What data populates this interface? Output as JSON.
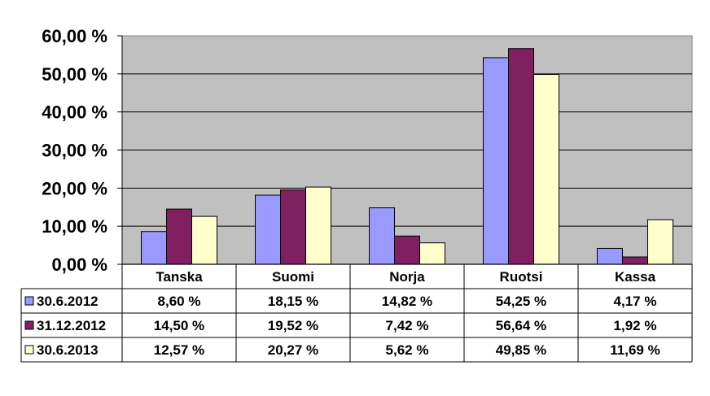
{
  "chart_data": {
    "type": "bar",
    "categories": [
      "Tanska",
      "Suomi",
      "Norja",
      "Ruotsi",
      "Kassa"
    ],
    "series": [
      {
        "name": "30.6.2012",
        "values": [
          8.6,
          18.15,
          14.82,
          54.25,
          4.17
        ],
        "labels": [
          "8,60 %",
          "18,15 %",
          "14,82 %",
          "54,25 %",
          "4,17 %"
        ],
        "color": "#9999FF"
      },
      {
        "name": "31.12.2012",
        "values": [
          14.5,
          19.52,
          7.42,
          56.64,
          1.92
        ],
        "labels": [
          "14,50 %",
          "19,52 %",
          "7,42 %",
          "56,64 %",
          "1,92 %"
        ],
        "color": "#802060"
      },
      {
        "name": "30.6.2013",
        "values": [
          12.57,
          20.27,
          5.62,
          49.85,
          11.69
        ],
        "labels": [
          "12,57 %",
          "20,27 %",
          "5,62 %",
          "49,85 %",
          "11,69 %"
        ],
        "color": "#FFFFCC"
      }
    ],
    "y_ticks": [
      "0,00 %",
      "10,00 %",
      "20,00 %",
      "30,00 %",
      "40,00 %",
      "50,00 %",
      "60,00 %"
    ],
    "ylim": [
      0,
      60
    ],
    "grid": true,
    "plot_background": "#C0C0C0",
    "legend": "data-table"
  }
}
